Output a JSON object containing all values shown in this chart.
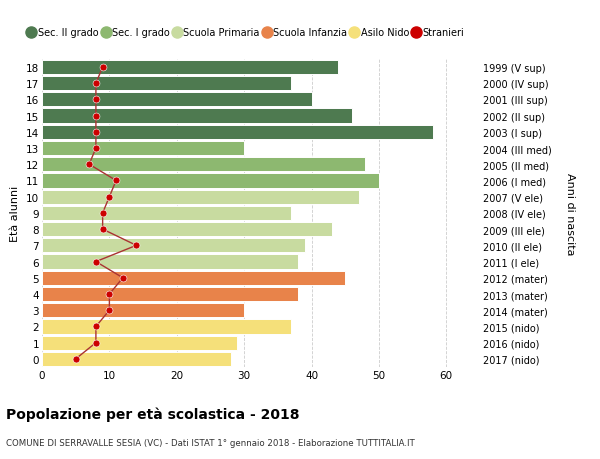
{
  "ages": [
    0,
    1,
    2,
    3,
    4,
    5,
    6,
    7,
    8,
    9,
    10,
    11,
    12,
    13,
    14,
    15,
    16,
    17,
    18
  ],
  "bar_values": [
    28,
    29,
    37,
    30,
    38,
    45,
    38,
    39,
    43,
    37,
    47,
    50,
    48,
    30,
    58,
    46,
    40,
    37,
    44
  ],
  "stranieri": [
    5,
    8,
    8,
    10,
    10,
    12,
    8,
    14,
    9,
    9,
    10,
    11,
    7,
    8,
    8,
    8,
    8,
    8,
    9
  ],
  "right_labels": [
    "2017 (nido)",
    "2016 (nido)",
    "2015 (nido)",
    "2014 (mater)",
    "2013 (mater)",
    "2012 (mater)",
    "2011 (I ele)",
    "2010 (II ele)",
    "2009 (III ele)",
    "2008 (IV ele)",
    "2007 (V ele)",
    "2006 (I med)",
    "2005 (II med)",
    "2004 (III med)",
    "2003 (I sup)",
    "2002 (II sup)",
    "2001 (III sup)",
    "2000 (IV sup)",
    "1999 (V sup)"
  ],
  "bar_colors": [
    "#f5e07a",
    "#f5e07a",
    "#f5e07a",
    "#e8834a",
    "#e8834a",
    "#e8834a",
    "#c8dba0",
    "#c8dba0",
    "#c8dba0",
    "#c8dba0",
    "#c8dba0",
    "#8db870",
    "#8db870",
    "#8db870",
    "#4e7a50",
    "#4e7a50",
    "#4e7a50",
    "#4e7a50",
    "#4e7a50"
  ],
  "legend_labels": [
    "Sec. II grado",
    "Sec. I grado",
    "Scuola Primaria",
    "Scuola Infanzia",
    "Asilo Nido",
    "Stranieri"
  ],
  "legend_colors": [
    "#4e7a50",
    "#8db870",
    "#c8dba0",
    "#e8834a",
    "#f5e07a",
    "#cc0000"
  ],
  "stranieri_color": "#cc0000",
  "stranieri_line_color": "#aa3333",
  "ylabel": "Età alunni",
  "ylabel_right": "Anni di nascita",
  "title": "Popolazione per età scolastica - 2018",
  "subtitle": "COMUNE DI SERRAVALLE SESIA (VC) - Dati ISTAT 1° gennaio 2018 - Elaborazione TUTTITALIA.IT",
  "xlim": [
    0,
    65
  ],
  "xticks": [
    0,
    10,
    20,
    30,
    40,
    50,
    60
  ],
  "bg_color": "#ffffff",
  "grid_color": "#cccccc"
}
